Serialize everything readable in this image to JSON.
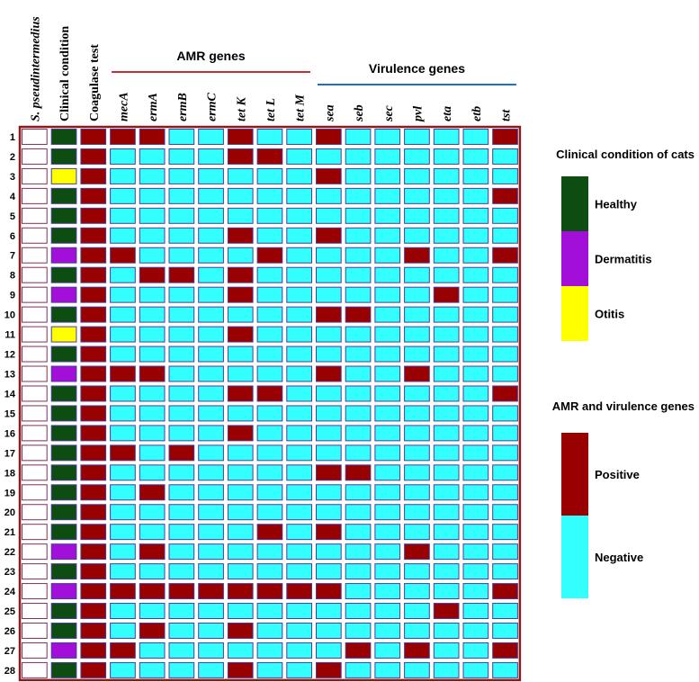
{
  "chart_data": {
    "type": "heatmap",
    "column_groups": [
      {
        "title": "AMR genes",
        "color": "#cc2a36",
        "start": 3,
        "end": 9
      },
      {
        "title": "Virulence genes",
        "color": "#1f6fc6",
        "start": 10,
        "end": 16
      }
    ],
    "columns": [
      {
        "label": "S. pseudintermedius",
        "italic": true
      },
      {
        "label": "Clinical condition",
        "italic": false
      },
      {
        "label": "Coagulase test",
        "italic": false
      },
      {
        "label": "mecA",
        "italic": true
      },
      {
        "label": "ermA",
        "italic": true
      },
      {
        "label": "ermB",
        "italic": true
      },
      {
        "label": "ermC",
        "italic": true
      },
      {
        "label": "tet K",
        "italic": true
      },
      {
        "label": "tet L",
        "italic": true
      },
      {
        "label": "tet M",
        "italic": true
      },
      {
        "label": "sea",
        "italic": true
      },
      {
        "label": "seb",
        "italic": true
      },
      {
        "label": "sec",
        "italic": true
      },
      {
        "label": "pvl",
        "italic": true
      },
      {
        "label": "eta",
        "italic": true
      },
      {
        "label": "etb",
        "italic": true
      },
      {
        "label": "tst",
        "italic": true
      }
    ],
    "rows": [
      "1",
      "2",
      "3",
      "4",
      "5",
      "6",
      "7",
      "8",
      "9",
      "10",
      "11",
      "12",
      "13",
      "14",
      "15",
      "16",
      "17",
      "18",
      "19",
      "20",
      "21",
      "22",
      "23",
      "24",
      "25",
      "26",
      "27",
      "28"
    ],
    "cell_codes": {
      "W": "species",
      "H": "Healthy",
      "D": "Dermatitis",
      "O": "Otitis",
      "P": "Positive",
      "N": "Negative"
    },
    "matrix": [
      "WHPPPNNPNNPNNNNNP",
      "WHPNNNNPPNNNNNNNN",
      "WOPNNNNNNNPNNNNNN",
      "WHPNNNNNNNNNNNNNP",
      "WHPNNNNNNNNNNNNNN",
      "WHPNNNNPNNPNNNNNN",
      "WDPPNNNNPNNNNPNNP",
      "WHPNPPNPNNNNNNNNN",
      "WDPNNNNPNNNNNNPNN",
      "WHPNNNNNNNPPNNNNN",
      "WOPNNNNPNNNNNNNNN",
      "WHPNNNNNNNNNNNNNN",
      "WDPPPNNNNNPNNPNNN",
      "WHPNNNNPPNNNNNNNP",
      "WHPNNNNNNNNNNNNNN",
      "WHPNNNNPNNNNNNNNN",
      "WHPPNPNNNNNNNNNNN",
      "WHPNNNNNNNPPNNNNN",
      "WHPNPNNNNNNNNNNNN",
      "WHPNNNNNNNNNNNNNN",
      "WHPNNNNNPNPNNNNNN",
      "WDPNPNNNNNNNNPNNN",
      "WHPNNNNNNNNNNNNNN",
      "WDPPPPPPPPPNNNNNP",
      "WHPNNNNNNNNNNNPNN",
      "WHPNPNNPNNNNNNNNN",
      "WDPPNNNNNNNPNPNNP",
      "WHPNNNNPNNPNNNNNN"
    ],
    "legends": [
      {
        "title": "Clinical condition of cats",
        "items": [
          {
            "label": "Healthy",
            "color": "#0d4d12"
          },
          {
            "label": "Dermatitis",
            "color": "#a10fd8"
          },
          {
            "label": "Otitis",
            "color": "#ffff00"
          }
        ]
      },
      {
        "title": "AMR and virulence genes",
        "items": [
          {
            "label": "Positive",
            "color": "#990000"
          },
          {
            "label": "Negative",
            "color": "#33ffff"
          }
        ]
      }
    ],
    "colors": {
      "species_fill": "#ffffff",
      "species_stroke": "#80305a",
      "cell_stroke": "#4a3c9a",
      "frame": "#8b1a1a",
      "Healthy": "#0d4d12",
      "Dermatitis": "#a10fd8",
      "Otitis": "#ffff00",
      "Positive": "#990000",
      "Negative": "#33ffff"
    }
  }
}
